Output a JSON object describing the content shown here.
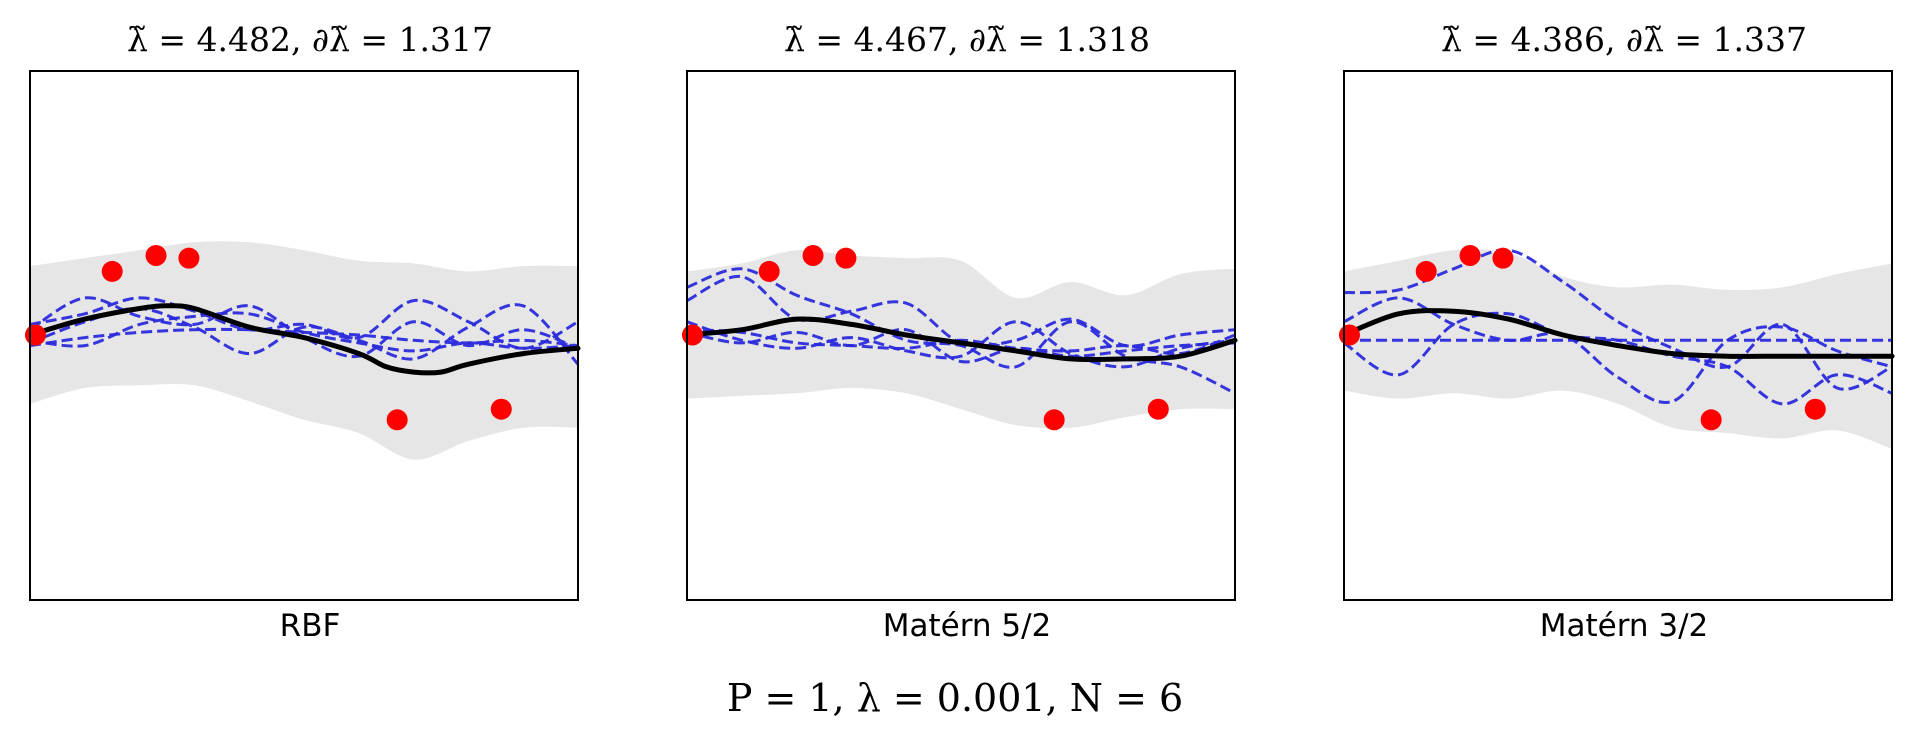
{
  "figure": {
    "caption": "P = 1, λ = 0.001, N = 6"
  },
  "chart_data": [
    {
      "type": "line",
      "title": "λ̃ = 4.482, ∂λ̃ = 1.317",
      "xlabel": "RBF",
      "ylabel": "",
      "xlim": [
        0,
        1
      ],
      "ylim": [
        -1,
        1
      ],
      "grid": false,
      "colors": {
        "mean": "#000000",
        "samples": "#2b2bdc",
        "band": "#e6e6e6",
        "points": "#ff0000"
      },
      "band": {
        "x": [
          0,
          0.1,
          0.2,
          0.3,
          0.4,
          0.5,
          0.6,
          0.7,
          0.8,
          0.9,
          1.0
        ],
        "upper": [
          0.26,
          0.29,
          0.32,
          0.35,
          0.35,
          0.32,
          0.28,
          0.27,
          0.24,
          0.26,
          0.26
        ],
        "lower": [
          -0.26,
          -0.2,
          -0.19,
          -0.19,
          -0.25,
          -0.32,
          -0.37,
          -0.47,
          -0.4,
          -0.35,
          -0.35
        ]
      },
      "mean": {
        "x": [
          0,
          0.1,
          0.2,
          0.25,
          0.3,
          0.4,
          0.5,
          0.6,
          0.65,
          0.7,
          0.75,
          0.8,
          0.9,
          1.0
        ],
        "y": [
          0.0,
          0.06,
          0.1,
          0.11,
          0.1,
          0.03,
          -0.01,
          -0.07,
          -0.12,
          -0.14,
          -0.14,
          -0.11,
          -0.07,
          -0.05
        ]
      },
      "samples": [
        {
          "x": [
            0,
            0.1,
            0.2,
            0.3,
            0.4,
            0.5,
            0.6,
            0.7,
            0.8,
            0.9,
            1.0
          ],
          "y": [
            0.02,
            0.14,
            0.07,
            0.04,
            0.11,
            -0.01,
            -0.08,
            0.05,
            -0.04,
            0.02,
            -0.05
          ]
        },
        {
          "x": [
            0,
            0.1,
            0.2,
            0.3,
            0.4,
            0.5,
            0.6,
            0.7,
            0.8,
            0.9,
            1.0
          ],
          "y": [
            0.04,
            0.08,
            0.14,
            0.09,
            0.02,
            0.04,
            -0.01,
            0.13,
            0.05,
            -0.05,
            0.05
          ]
        },
        {
          "x": [
            0,
            0.1,
            0.2,
            0.3,
            0.4,
            0.5,
            0.6,
            0.7,
            0.8,
            0.9,
            1.0
          ],
          "y": [
            -0.03,
            0.05,
            0.1,
            0.03,
            -0.07,
            0.03,
            -0.02,
            -0.09,
            0.03,
            0.11,
            -0.11
          ]
        },
        {
          "x": [
            0,
            0.1,
            0.2,
            0.3,
            0.4,
            0.5,
            0.6,
            0.7,
            0.8,
            0.9,
            1.0
          ],
          "y": [
            -0.02,
            -0.04,
            0.04,
            0.07,
            0.08,
            0.01,
            -0.03,
            -0.06,
            -0.03,
            -0.05,
            -0.04
          ]
        },
        {
          "x": [
            0,
            0.1,
            0.2,
            0.3,
            0.4,
            0.5,
            0.6,
            0.7,
            0.8,
            0.9,
            1.0
          ],
          "y": [
            -0.04,
            -0.01,
            0.01,
            0.02,
            0.02,
            0.01,
            0.0,
            -0.02,
            -0.03,
            -0.02,
            -0.04
          ]
        }
      ],
      "points": {
        "x": [
          0.01,
          0.15,
          0.23,
          0.29,
          0.67,
          0.86
        ],
        "y": [
          0.0,
          0.24,
          0.3,
          0.29,
          -0.32,
          -0.28
        ]
      }
    },
    {
      "type": "line",
      "title": "λ̃ = 4.467, ∂λ̃ = 1.318",
      "xlabel": "Matérn 5/2",
      "ylabel": "",
      "xlim": [
        0,
        1
      ],
      "ylim": [
        -1,
        1
      ],
      "grid": false,
      "colors": {
        "mean": "#000000",
        "samples": "#2b2bdc",
        "band": "#e6e6e6",
        "points": "#ff0000"
      },
      "band": {
        "x": [
          0,
          0.1,
          0.2,
          0.3,
          0.4,
          0.5,
          0.6,
          0.7,
          0.8,
          0.9,
          1.0
        ],
        "upper": [
          0.24,
          0.27,
          0.32,
          0.3,
          0.29,
          0.28,
          0.14,
          0.2,
          0.15,
          0.23,
          0.25
        ],
        "lower": [
          -0.24,
          -0.23,
          -0.22,
          -0.2,
          -0.22,
          -0.28,
          -0.34,
          -0.35,
          -0.31,
          -0.28,
          -0.28
        ]
      },
      "mean": {
        "x": [
          0,
          0.1,
          0.2,
          0.3,
          0.4,
          0.5,
          0.6,
          0.7,
          0.8,
          0.9,
          1.0
        ],
        "y": [
          0.0,
          0.02,
          0.06,
          0.04,
          0.0,
          -0.03,
          -0.06,
          -0.09,
          -0.09,
          -0.08,
          -0.02
        ]
      },
      "samples": [
        {
          "x": [
            0,
            0.1,
            0.2,
            0.3,
            0.4,
            0.5,
            0.6,
            0.7,
            0.8,
            0.9,
            1.0
          ],
          "y": [
            0.18,
            0.25,
            0.15,
            0.08,
            -0.02,
            -0.04,
            -0.12,
            0.05,
            -0.08,
            -0.12,
            -0.22
          ]
        },
        {
          "x": [
            0,
            0.1,
            0.2,
            0.3,
            0.4,
            0.5,
            0.6,
            0.7,
            0.8,
            0.9,
            1.0
          ],
          "y": [
            0.13,
            0.22,
            0.06,
            0.09,
            0.12,
            -0.03,
            -0.02,
            0.06,
            -0.04,
            0.0,
            0.02
          ]
        },
        {
          "x": [
            0,
            0.1,
            0.2,
            0.3,
            0.4,
            0.5,
            0.6,
            0.7,
            0.8,
            0.9,
            1.0
          ],
          "y": [
            0.02,
            0.01,
            -0.03,
            -0.04,
            -0.05,
            -0.02,
            -0.05,
            -0.06,
            -0.04,
            -0.07,
            0.0
          ]
        },
        {
          "x": [
            0,
            0.1,
            0.2,
            0.3,
            0.4,
            0.5,
            0.6,
            0.7,
            0.8,
            0.9,
            1.0
          ],
          "y": [
            0.01,
            -0.03,
            0.01,
            -0.04,
            0.02,
            -0.1,
            -0.05,
            -0.08,
            -0.06,
            -0.04,
            -0.03
          ]
        },
        {
          "x": [
            0,
            0.1,
            0.2,
            0.3,
            0.4,
            0.5,
            0.6,
            0.7,
            0.8,
            0.9,
            1.0
          ],
          "y": [
            0.05,
            -0.02,
            -0.05,
            -0.01,
            -0.06,
            -0.08,
            0.05,
            -0.07,
            -0.12,
            -0.05,
            -0.02
          ]
        }
      ],
      "points": {
        "x": [
          0.01,
          0.15,
          0.23,
          0.29,
          0.67,
          0.86
        ],
        "y": [
          0.0,
          0.24,
          0.3,
          0.29,
          -0.32,
          -0.28
        ]
      }
    },
    {
      "type": "line",
      "title": "λ̃ = 4.386, ∂λ̃ = 1.337",
      "xlabel": "Matérn 3/2",
      "ylabel": "",
      "xlim": [
        0,
        1
      ],
      "ylim": [
        -1,
        1
      ],
      "grid": false,
      "colors": {
        "mean": "#000000",
        "samples": "#2b2bdc",
        "band": "#e6e6e6",
        "points": "#ff0000"
      },
      "band": {
        "x": [
          0,
          0.1,
          0.2,
          0.3,
          0.4,
          0.5,
          0.6,
          0.7,
          0.8,
          0.9,
          1.0
        ],
        "upper": [
          0.24,
          0.28,
          0.32,
          0.31,
          0.22,
          0.18,
          0.19,
          0.17,
          0.18,
          0.23,
          0.27
        ],
        "lower": [
          -0.21,
          -0.24,
          -0.22,
          -0.24,
          -0.21,
          -0.26,
          -0.35,
          -0.37,
          -0.39,
          -0.36,
          -0.43
        ]
      },
      "mean": {
        "x": [
          0,
          0.1,
          0.2,
          0.3,
          0.4,
          0.5,
          0.6,
          0.7,
          0.8,
          0.9,
          1.0
        ],
        "y": [
          0.0,
          0.08,
          0.09,
          0.06,
          0.0,
          -0.04,
          -0.07,
          -0.08,
          -0.08,
          -0.08,
          -0.08
        ]
      },
      "samples": [
        {
          "x": [
            0,
            0.1,
            0.2,
            0.3,
            0.4,
            0.5,
            0.6,
            0.7,
            0.8,
            0.9,
            1.0
          ],
          "y": [
            -0.02,
            -0.02,
            -0.02,
            -0.02,
            -0.02,
            -0.02,
            -0.02,
            -0.02,
            -0.02,
            -0.02,
            -0.02
          ]
        },
        {
          "x": [
            0,
            0.1,
            0.2,
            0.3,
            0.4,
            0.5,
            0.6,
            0.7,
            0.8,
            0.9,
            1.0
          ],
          "y": [
            0.16,
            0.17,
            0.25,
            0.32,
            0.2,
            0.05,
            -0.05,
            -0.12,
            0.04,
            -0.2,
            -0.12
          ]
        },
        {
          "x": [
            0,
            0.1,
            0.2,
            0.3,
            0.4,
            0.5,
            0.6,
            0.7,
            0.8,
            0.9,
            1.0
          ],
          "y": [
            0.05,
            0.14,
            0.04,
            -0.02,
            0.0,
            -0.16,
            -0.25,
            -0.02,
            0.03,
            -0.06,
            -0.12
          ]
        },
        {
          "x": [
            0,
            0.1,
            0.2,
            0.3,
            0.4,
            0.5,
            0.6,
            0.7,
            0.8,
            0.9,
            1.0
          ],
          "y": [
            -0.03,
            -0.15,
            0.04,
            0.08,
            0.0,
            -0.02,
            -0.08,
            -0.12,
            -0.26,
            -0.15,
            -0.22
          ]
        }
      ],
      "points": {
        "x": [
          0.01,
          0.15,
          0.23,
          0.29,
          0.67,
          0.86
        ],
        "y": [
          0.0,
          0.24,
          0.3,
          0.29,
          -0.32,
          -0.28
        ]
      }
    }
  ]
}
